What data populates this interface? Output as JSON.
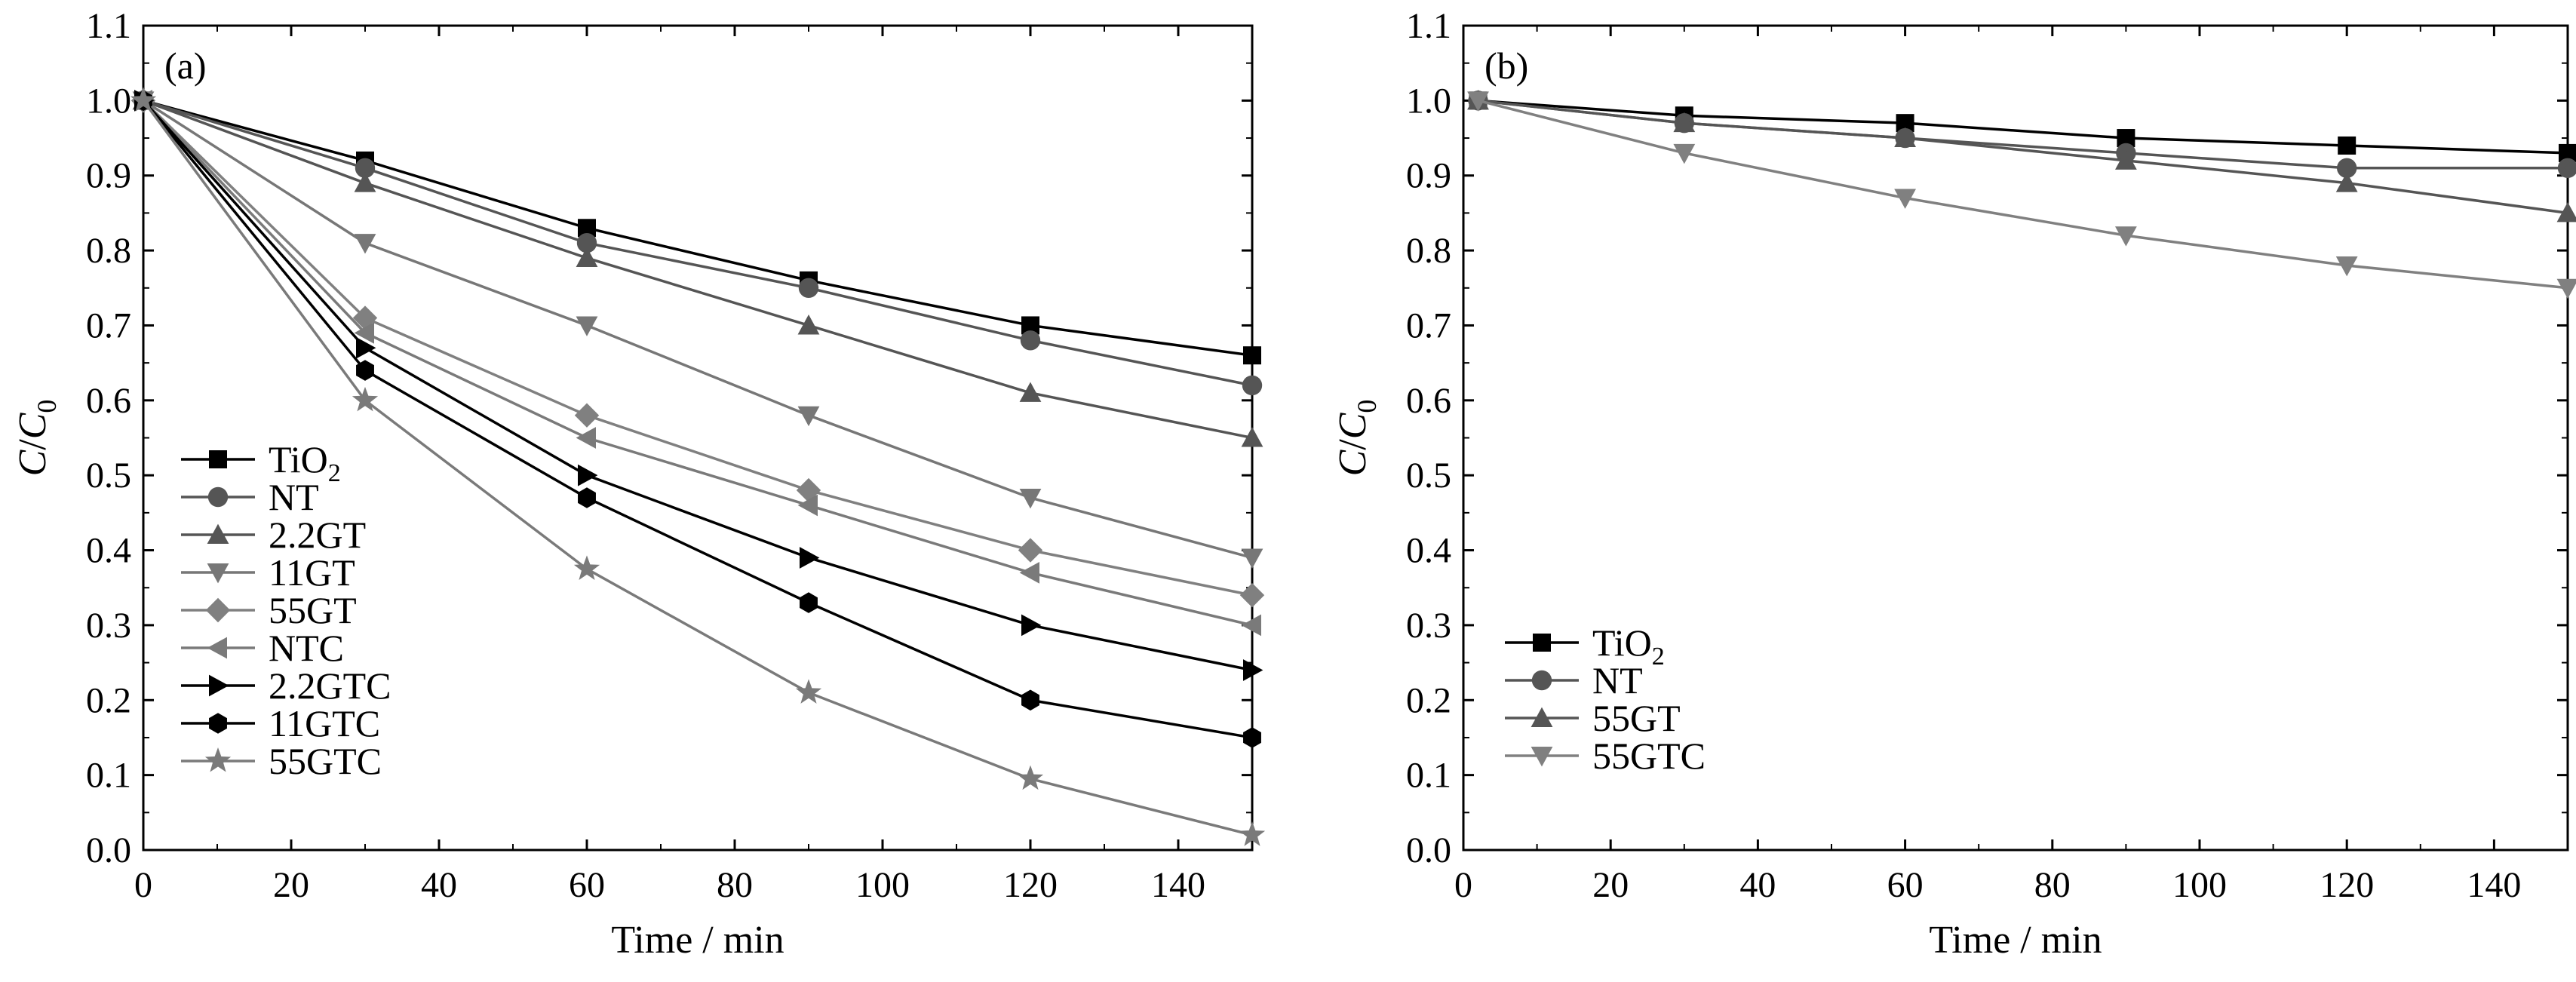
{
  "chart_data": [
    {
      "type": "line",
      "panel_label": "(a)",
      "xlabel": "Time / min",
      "ylabel_main": "C",
      "ylabel_sep": "/",
      "ylabel_sub": "0",
      "xlim": [
        0,
        150
      ],
      "ylim": [
        0,
        1.1
      ],
      "xticks": [
        0,
        20,
        40,
        60,
        80,
        100,
        120,
        140
      ],
      "yticks": [
        0.0,
        0.1,
        0.2,
        0.3,
        0.4,
        0.5,
        0.6,
        0.7,
        0.8,
        0.9,
        1.0,
        1.1
      ],
      "xtick_labels": [
        "0",
        "20",
        "40",
        "60",
        "80",
        "100",
        "120",
        "140"
      ],
      "ytick_labels": [
        "0.0",
        "0.1",
        "0.2",
        "0.3",
        "0.4",
        "0.5",
        "0.6",
        "0.7",
        "0.8",
        "0.9",
        "1.0",
        "1.1"
      ],
      "legend_position": "bottom-left",
      "x": [
        0,
        30,
        60,
        90,
        120,
        150
      ],
      "series": [
        {
          "name": "TiO",
          "name_sub": "2",
          "marker": "square",
          "color": "#000000",
          "values": [
            1.0,
            0.92,
            0.83,
            0.76,
            0.7,
            0.66
          ]
        },
        {
          "name": "NT",
          "name_sub": "",
          "marker": "circle",
          "color": "#555555",
          "values": [
            1.0,
            0.91,
            0.81,
            0.75,
            0.68,
            0.62
          ]
        },
        {
          "name": "2.2GT",
          "name_sub": "",
          "marker": "triangle-up",
          "color": "#555555",
          "values": [
            1.0,
            0.89,
            0.79,
            0.7,
            0.61,
            0.55
          ]
        },
        {
          "name": "11GT",
          "name_sub": "",
          "marker": "triangle-down",
          "color": "#777777",
          "values": [
            1.0,
            0.81,
            0.7,
            0.58,
            0.47,
            0.39
          ]
        },
        {
          "name": "55GT",
          "name_sub": "",
          "marker": "diamond",
          "color": "#808080",
          "values": [
            1.0,
            0.71,
            0.58,
            0.48,
            0.4,
            0.34
          ]
        },
        {
          "name": "NTC",
          "name_sub": "",
          "marker": "triangle-left",
          "color": "#7a7a7a",
          "values": [
            1.0,
            0.69,
            0.55,
            0.46,
            0.37,
            0.3
          ]
        },
        {
          "name": "2.2GTC",
          "name_sub": "",
          "marker": "triangle-right",
          "color": "#000000",
          "values": [
            1.0,
            0.67,
            0.5,
            0.39,
            0.3,
            0.24
          ]
        },
        {
          "name": "11GTC",
          "name_sub": "",
          "marker": "hexagon",
          "color": "#000000",
          "values": [
            1.0,
            0.64,
            0.47,
            0.33,
            0.2,
            0.15
          ]
        },
        {
          "name": "55GTC",
          "name_sub": "",
          "marker": "star",
          "color": "#7a7a7a",
          "values": [
            1.0,
            0.6,
            0.375,
            0.21,
            0.095,
            0.02
          ]
        }
      ]
    },
    {
      "type": "line",
      "panel_label": "(b)",
      "xlabel": "Time / min",
      "ylabel_main": "C",
      "ylabel_sep": "/",
      "ylabel_sub": "0",
      "xlim": [
        0,
        150
      ],
      "ylim": [
        0,
        1.1
      ],
      "xticks": [
        0,
        20,
        40,
        60,
        80,
        100,
        120,
        140
      ],
      "yticks": [
        0.0,
        0.1,
        0.2,
        0.3,
        0.4,
        0.5,
        0.6,
        0.7,
        0.8,
        0.9,
        1.0,
        1.1
      ],
      "xtick_labels": [
        "0",
        "20",
        "40",
        "60",
        "80",
        "100",
        "120",
        "140"
      ],
      "ytick_labels": [
        "0.0",
        "0.1",
        "0.2",
        "0.3",
        "0.4",
        "0.5",
        "0.6",
        "0.7",
        "0.8",
        "0.9",
        "1.0",
        "1.1"
      ],
      "legend_position": "bottom-left",
      "x": [
        2,
        30,
        60,
        90,
        120,
        150
      ],
      "series": [
        {
          "name": "TiO",
          "name_sub": "2",
          "marker": "square",
          "color": "#000000",
          "values": [
            1.0,
            0.98,
            0.97,
            0.95,
            0.94,
            0.93
          ]
        },
        {
          "name": "NT",
          "name_sub": "",
          "marker": "circle",
          "color": "#555555",
          "values": [
            1.0,
            0.97,
            0.95,
            0.93,
            0.91,
            0.91
          ]
        },
        {
          "name": "55GT",
          "name_sub": "",
          "marker": "triangle-up",
          "color": "#555555",
          "values": [
            1.0,
            0.97,
            0.95,
            0.92,
            0.89,
            0.85
          ]
        },
        {
          "name": "55GTC",
          "name_sub": "",
          "marker": "triangle-down",
          "color": "#808080",
          "values": [
            1.0,
            0.93,
            0.87,
            0.82,
            0.78,
            0.75
          ]
        }
      ]
    }
  ]
}
